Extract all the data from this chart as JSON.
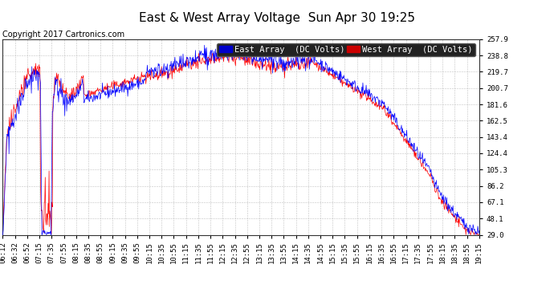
{
  "title": "East & West Array Voltage  Sun Apr 30 19:25",
  "copyright": "Copyright 2017 Cartronics.com",
  "legend_east": "East Array  (DC Volts)",
  "legend_west": "West Array  (DC Volts)",
  "color_east": "#0000ff",
  "color_west": "#ff0000",
  "legend_bg_east": "#0000cc",
  "legend_bg_west": "#cc0000",
  "bg_color": "#ffffff",
  "plot_bg_color": "#ffffff",
  "grid_color": "#bbbbbb",
  "ylim_min": 29.0,
  "ylim_max": 257.9,
  "yticks": [
    29.0,
    48.1,
    67.1,
    86.2,
    105.3,
    124.4,
    143.4,
    162.5,
    181.6,
    200.7,
    219.7,
    238.8,
    257.9
  ],
  "xtick_labels": [
    "06:12",
    "06:32",
    "06:52",
    "07:15",
    "07:35",
    "07:55",
    "08:15",
    "08:35",
    "08:55",
    "09:15",
    "09:35",
    "09:55",
    "10:15",
    "10:35",
    "10:55",
    "11:15",
    "11:35",
    "11:55",
    "12:15",
    "12:35",
    "12:55",
    "13:15",
    "13:35",
    "13:55",
    "14:15",
    "14:35",
    "14:55",
    "15:15",
    "15:35",
    "15:55",
    "16:15",
    "16:35",
    "16:55",
    "17:15",
    "17:35",
    "17:55",
    "18:15",
    "18:35",
    "18:55",
    "19:15"
  ],
  "title_fontsize": 11,
  "copyright_fontsize": 7,
  "tick_fontsize": 6.5,
  "legend_fontsize": 7.5
}
